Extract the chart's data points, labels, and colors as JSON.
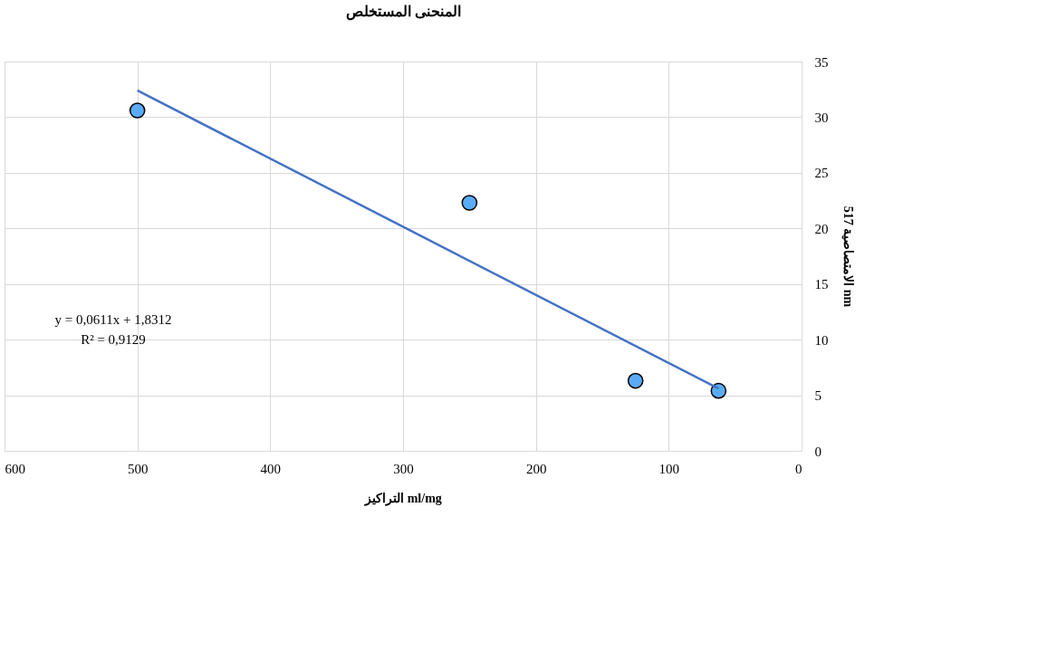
{
  "chart_data": {
    "type": "scatter",
    "title": "المنحنى المستخلص",
    "xlabel": "التراكيز ml/mg",
    "ylabel": "الامتصاصية 517 nm",
    "series": [
      {
        "color": "#5aabf5",
        "marker": "circle",
        "x": [
          500,
          250,
          125,
          62.5
        ],
        "values": [
          30.6,
          22.3,
          6.3,
          5.4
        ]
      },
      {
        "type": "line",
        "color": "#4472c4",
        "x": [
          500,
          62.5
        ],
        "values": [
          32.4,
          5.6
        ],
        "marker": "none"
      }
    ],
    "annotations": [
      "y = 0,0611x + 1,8312",
      "R² = 0,9129"
    ],
    "xlim": [
      600,
      0
    ],
    "xticks": [
      600,
      500,
      400,
      300,
      200,
      100,
      0
    ],
    "ylim": [
      0,
      35
    ],
    "yticks": [
      0,
      5,
      10,
      15,
      20,
      25,
      30,
      35
    ],
    "grid": true,
    "line_style": "solid"
  }
}
